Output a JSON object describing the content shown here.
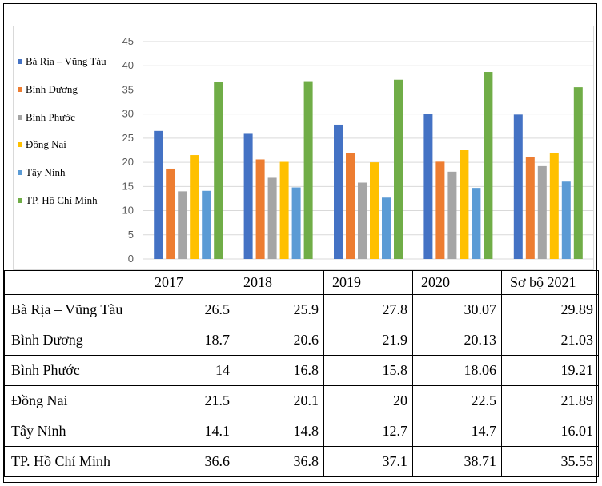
{
  "chart_data": {
    "type": "bar",
    "categories": [
      "2017",
      "2018",
      "2019",
      "2020",
      "Sơ bộ 2021"
    ],
    "series": [
      {
        "name": "Bà Rịa – Vũng Tàu",
        "color": "#4472C4",
        "values": [
          26.5,
          25.9,
          27.8,
          30.07,
          29.89
        ]
      },
      {
        "name": "Bình Dương",
        "color": "#ED7D31",
        "values": [
          18.7,
          20.6,
          21.9,
          20.13,
          21.03
        ]
      },
      {
        "name": "Bình Phước",
        "color": "#A5A5A5",
        "values": [
          14,
          16.8,
          15.8,
          18.06,
          19.21
        ]
      },
      {
        "name": "Đồng Nai",
        "color": "#FFC000",
        "values": [
          21.5,
          20.1,
          20,
          22.5,
          21.89
        ]
      },
      {
        "name": "Tây Ninh",
        "color": "#5B9BD5",
        "values": [
          14.1,
          14.8,
          12.7,
          14.7,
          16.01
        ]
      },
      {
        "name": "TP. Hồ Chí Minh",
        "color": "#70AD47",
        "values": [
          36.6,
          36.8,
          37.1,
          38.71,
          35.55
        ]
      }
    ],
    "ylim": [
      0,
      45
    ],
    "yticks": [
      "0",
      "5",
      "10",
      "15",
      "20",
      "25",
      "30",
      "35",
      "40",
      "45"
    ],
    "grid": true,
    "legend_position": "left"
  },
  "table": {
    "headers": [
      "",
      "2017",
      "2018",
      "2019",
      "2020",
      "Sơ bộ 2021"
    ],
    "rows": [
      {
        "label": "Bà Rịa – Vũng Tàu",
        "values": [
          "26.5",
          "25.9",
          "27.8",
          "30.07",
          "29.89"
        ]
      },
      {
        "label": "Bình Dương",
        "values": [
          "18.7",
          "20.6",
          "21.9",
          "20.13",
          "21.03"
        ]
      },
      {
        "label": "Bình Phước",
        "values": [
          "14",
          "16.8",
          "15.8",
          "18.06",
          "19.21"
        ]
      },
      {
        "label": "Đồng Nai",
        "values": [
          "21.5",
          "20.1",
          "20",
          "22.5",
          "21.89"
        ]
      },
      {
        "label": "Tây Ninh",
        "values": [
          "14.1",
          "14.8",
          "12.7",
          "14.7",
          "16.01"
        ]
      },
      {
        "label": "TP. Hồ Chí Minh",
        "values": [
          "36.6",
          "36.8",
          "37.1",
          "38.71",
          "35.55"
        ]
      }
    ]
  }
}
